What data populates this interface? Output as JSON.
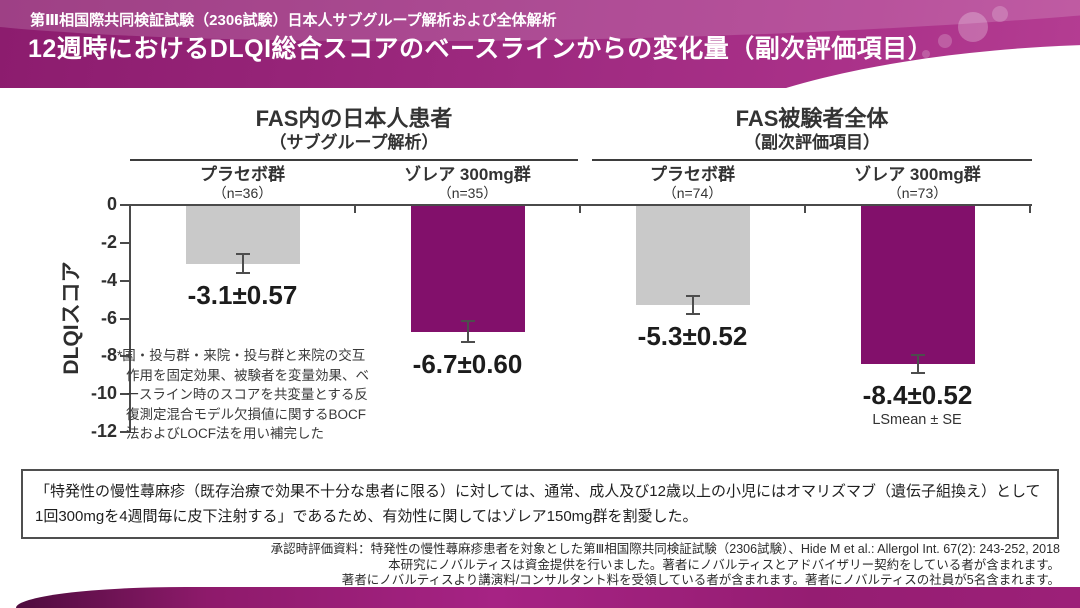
{
  "header": {
    "kicker": "第Ⅲ相国際共同検証試験（2306試験）日本人サブグループ解析および全体解析",
    "title": "12週時におけるDLQI総合スコアのベースラインからの変化量（副次評価項目）"
  },
  "chart_data": {
    "type": "bar",
    "ylabel": "DLQIスコア",
    "ylim": [
      -12,
      0
    ],
    "yticks": [
      0,
      -2,
      -4,
      -6,
      -8,
      -10,
      -12
    ],
    "grid": false,
    "groups": [
      {
        "title": "FAS内の日本人患者",
        "subtitle": "（サブグループ解析）"
      },
      {
        "title": "FAS被験者全体",
        "subtitle": "（副次評価項目）"
      }
    ],
    "bars": [
      {
        "group": 0,
        "label": "プラセボ群",
        "n": "（n=36）",
        "value": -3.1,
        "se": 0.57,
        "value_label": "-3.1±0.57",
        "color": "#c9c9c9"
      },
      {
        "group": 0,
        "label": "ゾレア 300mg群",
        "n": "（n=35）",
        "value": -6.7,
        "se": 0.6,
        "value_label": "-6.7±0.60",
        "color": "#82106b"
      },
      {
        "group": 1,
        "label": "プラセボ群",
        "n": "（n=74）",
        "value": -5.3,
        "se": 0.52,
        "value_label": "-5.3±0.52",
        "color": "#c9c9c9"
      },
      {
        "group": 1,
        "label": "ゾレア 300mg群",
        "n": "（n=73）",
        "value": -8.4,
        "se": 0.52,
        "value_label": "-8.4±0.52",
        "color": "#82106b"
      }
    ],
    "error_note": "LSmean ± SE"
  },
  "footnote": "*国・投与群・来院・投与群と来院の交互作用を固定効果、被験者を変量効果、ベースライン時のスコアを共変量とする反復測定混合モデル欠損値に関するBOCF法およびLOCF法を用い補完した",
  "note_box": "「特発性の慢性蕁麻疹（既存治療で効果不十分な患者に限る）に対しては、通常、成人及び12歳以上の小児にはオマリズマブ（遺伝子組換え）として1回300mgを4週間毎に皮下注射する」であるため、有効性に関してはゾレア150mg群を割愛した。",
  "sources": [
    "承認時評価資料：特発性の慢性蕁麻疹患者を対象とした第Ⅲ相国際共同検証試験（2306試験）、Hide M et al.: Allergol Int. 67(2): 243-252, 2018",
    "本研究にノバルティスは資金提供を行いました。著者にノバルティスとアドバイザリー契約をしている者が含まれます。",
    "著者にノバルティスより講演料/コンサルタント料を受領している者が含まれます。著者にノバルティスの社員が5名含まれます。"
  ],
  "colors": {
    "placebo_bar": "#c9c9c9",
    "xolair_bar": "#82106b",
    "banner": "#9e2a80",
    "axis": "#4a4a4a"
  }
}
